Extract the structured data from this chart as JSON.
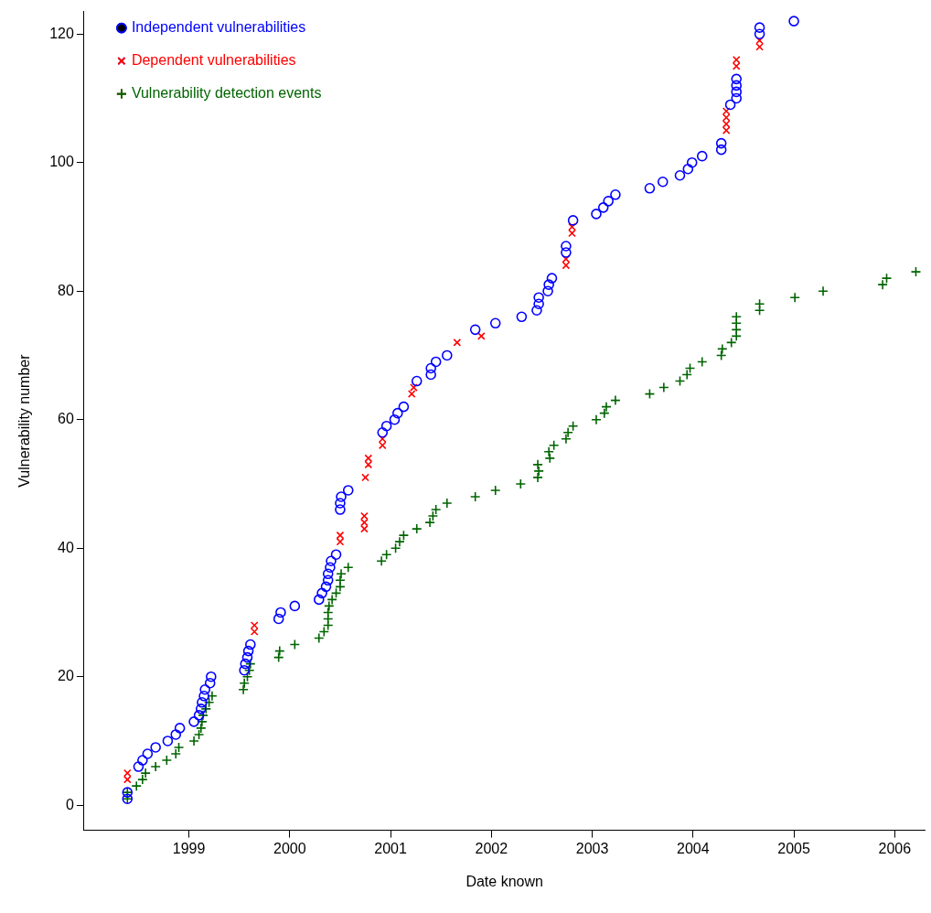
{
  "chart_data": {
    "type": "scatter",
    "xlabel": "Date known",
    "ylabel": "Vulnerability number",
    "xlim": [
      1997.96,
      2006.3
    ],
    "xticks": [
      1999,
      2000,
      2001,
      2002,
      2003,
      2004,
      2005,
      2006
    ],
    "ylim": [
      -3.9,
      123.5
    ],
    "yticks": [
      0,
      20,
      40,
      60,
      80,
      100,
      120
    ],
    "grid": false,
    "legend": "top left",
    "series": [
      {
        "name": "Independent vulnerabilities",
        "color": "#0000ff",
        "marker": "circle",
        "x": [
          1998.39,
          1998.39,
          1998.5,
          1998.54,
          1998.59,
          1998.67,
          1998.79,
          1998.87,
          1998.91,
          1999.05,
          1999.1,
          1999.12,
          1999.13,
          1999.15,
          1999.16,
          1999.21,
          1999.22,
          1999.55,
          1999.56,
          1999.58,
          1999.59,
          1999.61,
          1999.89,
          1999.91,
          2000.05,
          2000.29,
          2000.32,
          2000.36,
          2000.38,
          2000.38,
          2000.4,
          2000.41,
          2000.46,
          2000.5,
          2000.5,
          2000.51,
          2000.58,
          2000.92,
          2000.96,
          2001.04,
          2001.07,
          2001.13,
          2001.26,
          2001.4,
          2001.4,
          2001.45,
          2001.56,
          2001.84,
          2002.04,
          2002.3,
          2002.45,
          2002.47,
          2002.47,
          2002.56,
          2002.57,
          2002.6,
          2002.74,
          2002.74,
          2002.81,
          2003.04,
          2003.11,
          2003.16,
          2003.23,
          2003.57,
          2003.7,
          2003.87,
          2003.95,
          2003.99,
          2004.09,
          2004.28,
          2004.28,
          2004.37,
          2004.43,
          2004.43,
          2004.43,
          2004.43,
          2004.66,
          2004.66,
          2005.0
        ],
        "values": [
          1,
          2,
          6,
          7,
          8,
          9,
          10,
          11,
          12,
          13,
          14,
          15,
          16,
          17,
          18,
          19,
          20,
          21,
          22,
          23,
          24,
          25,
          29,
          30,
          31,
          32,
          33,
          34,
          35,
          36,
          37,
          38,
          39,
          46,
          47,
          48,
          49,
          58,
          59,
          60,
          61,
          62,
          66,
          67,
          68,
          69,
          70,
          74,
          75,
          76,
          77,
          78,
          79,
          80,
          81,
          82,
          86,
          87,
          91,
          92,
          93,
          94,
          95,
          96,
          97,
          98,
          99,
          100,
          101,
          102,
          103,
          109,
          110,
          111,
          112,
          113,
          120,
          121,
          122
        ]
      },
      {
        "name": "Dependent vulnerabilities",
        "color": "#ff0000",
        "marker": "x",
        "x": [
          1998.39,
          1998.39,
          1999.65,
          1999.65,
          2000.5,
          2000.5,
          2000.74,
          2000.74,
          2000.74,
          2000.75,
          2000.78,
          2000.78,
          2000.92,
          2000.92,
          2001.21,
          2001.23,
          2001.66,
          2001.9,
          2002.74,
          2002.74,
          2002.8,
          2002.8,
          2004.33,
          2004.33,
          2004.33,
          2004.33,
          2004.43,
          2004.43,
          2004.66,
          2004.66
        ],
        "values": [
          4,
          5,
          27,
          28,
          41,
          42,
          43,
          44,
          45,
          51,
          53,
          54,
          56,
          57,
          64,
          65,
          72,
          73,
          84,
          85,
          89,
          90,
          105,
          106,
          107,
          108,
          115,
          116,
          118,
          119
        ]
      },
      {
        "name": "Vulnerability detection events",
        "color": "#006400",
        "marker": "cross",
        "x": [
          1998.39,
          1998.39,
          1998.48,
          1998.54,
          1998.57,
          1998.67,
          1998.78,
          1998.87,
          1998.9,
          1999.05,
          1999.1,
          1999.12,
          1999.13,
          1999.14,
          1999.17,
          1999.2,
          1999.23,
          1999.54,
          1999.55,
          1999.58,
          1999.6,
          1999.61,
          1999.89,
          1999.9,
          2000.05,
          2000.29,
          2000.34,
          2000.38,
          2000.38,
          2000.38,
          2000.39,
          2000.42,
          2000.46,
          2000.5,
          2000.5,
          2000.51,
          2000.58,
          2000.91,
          2000.96,
          2001.05,
          2001.09,
          2001.13,
          2001.26,
          2001.39,
          2001.42,
          2001.45,
          2001.56,
          2001.84,
          2002.04,
          2002.29,
          2002.46,
          2002.47,
          2002.46,
          2002.58,
          2002.57,
          2002.62,
          2002.74,
          2002.76,
          2002.81,
          2003.04,
          2003.12,
          2003.14,
          2003.23,
          2003.57,
          2003.71,
          2003.87,
          2003.94,
          2003.97,
          2004.09,
          2004.28,
          2004.29,
          2004.38,
          2004.43,
          2004.43,
          2004.43,
          2004.43,
          2004.66,
          2004.66,
          2005.01,
          2005.29,
          2005.88,
          2005.92,
          2006.21
        ],
        "values": [
          1,
          2,
          3,
          4,
          5,
          6,
          7,
          8,
          9,
          10,
          11,
          12,
          13,
          14,
          15,
          16,
          17,
          18,
          19,
          20,
          21,
          22,
          23,
          24,
          25,
          26,
          27,
          28,
          29,
          30,
          31,
          32,
          33,
          34,
          35,
          36,
          37,
          38,
          39,
          40,
          41,
          42,
          43,
          44,
          45,
          46,
          47,
          48,
          49,
          50,
          51,
          52,
          53,
          54,
          55,
          56,
          57,
          58,
          59,
          60,
          61,
          62,
          63,
          64,
          65,
          66,
          67,
          68,
          69,
          70,
          71,
          72,
          73,
          74,
          75,
          76,
          77,
          78,
          79,
          80,
          81,
          82,
          83
        ]
      }
    ]
  }
}
